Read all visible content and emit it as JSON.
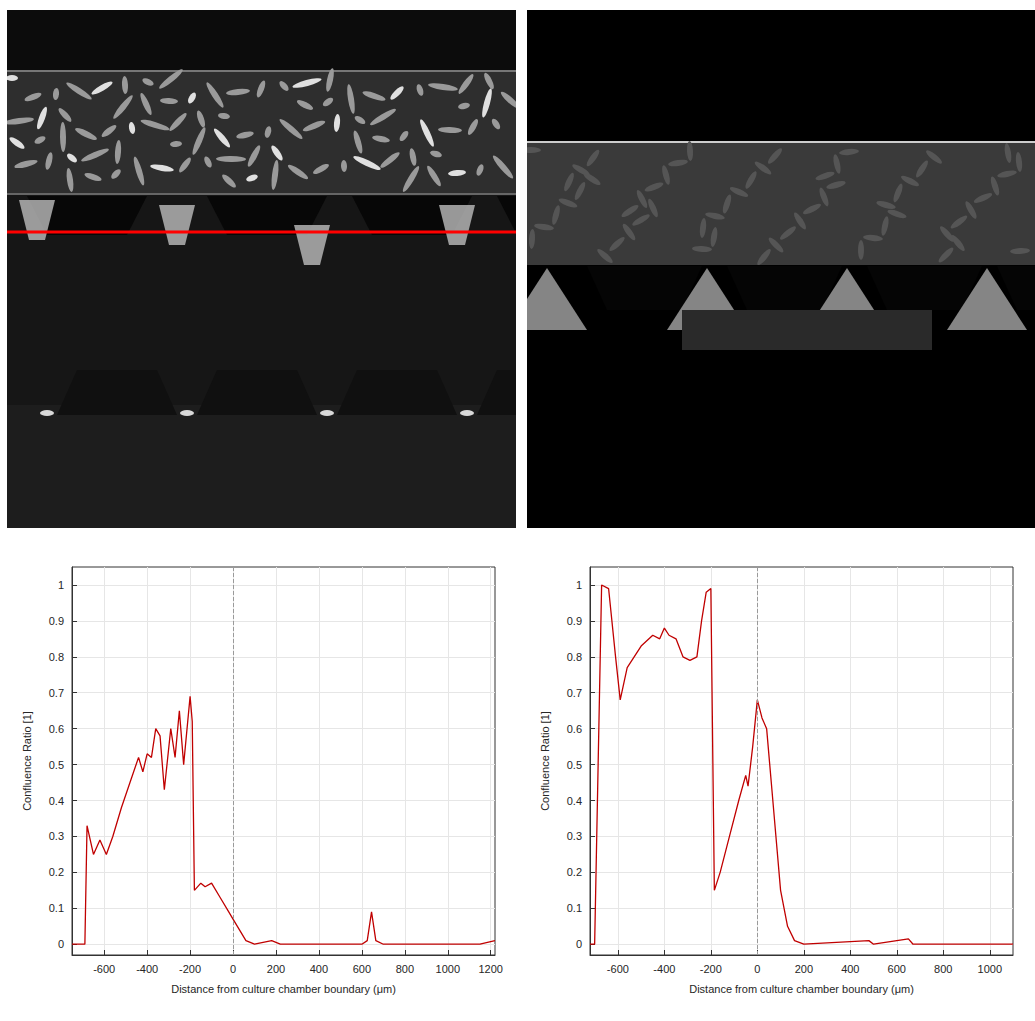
{
  "chart_data": [
    {
      "type": "line",
      "x_label": "Distance from culture chamber boundary (μm)",
      "y_label": "Confluence Ratio [1]",
      "x": [
        -750,
        -690,
        -680,
        -650,
        -620,
        -590,
        -560,
        -520,
        -480,
        -440,
        -420,
        -400,
        -380,
        -360,
        -340,
        -320,
        -290,
        -270,
        -250,
        -230,
        -200,
        -190,
        -180,
        -150,
        -130,
        -100,
        -60,
        -20,
        0,
        30,
        60,
        100,
        180,
        220,
        600,
        625,
        645,
        665,
        700,
        1150,
        1220
      ],
      "values": [
        0,
        0,
        0.33,
        0.25,
        0.29,
        0.25,
        0.3,
        0.38,
        0.45,
        0.52,
        0.48,
        0.53,
        0.52,
        0.6,
        0.58,
        0.43,
        0.6,
        0.52,
        0.65,
        0.5,
        0.69,
        0.62,
        0.15,
        0.17,
        0.16,
        0.17,
        0.13,
        0.09,
        0.07,
        0.04,
        0.01,
        0,
        0.01,
        0,
        0,
        0.01,
        0.09,
        0.01,
        0,
        0,
        0.01
      ],
      "color": "#c00000",
      "xlim": [
        -750,
        1220
      ],
      "xticks": [
        -600,
        -400,
        -200,
        0,
        200,
        400,
        600,
        800,
        1000,
        1200
      ],
      "ylim": [
        -0.03,
        1.05
      ],
      "yticks": [
        0,
        0.1,
        0.2,
        0.3,
        0.4,
        0.5,
        0.6,
        0.7,
        0.8,
        0.9,
        1
      ],
      "vline": 0,
      "grid": true
    },
    {
      "type": "line",
      "x_label": "Distance from culture chamber boundary (μm)",
      "y_label": "Confluence Ratio [1]",
      "x": [
        -720,
        -700,
        -670,
        -640,
        -610,
        -590,
        -560,
        -530,
        -500,
        -450,
        -420,
        -400,
        -380,
        -350,
        -320,
        -290,
        -260,
        -240,
        -220,
        -200,
        -185,
        -160,
        -120,
        -80,
        -50,
        -40,
        -20,
        0,
        20,
        40,
        60,
        80,
        100,
        130,
        160,
        200,
        480,
        500,
        650,
        670,
        1100
      ],
      "values": [
        0,
        0,
        1,
        0.99,
        0.8,
        0.68,
        0.77,
        0.8,
        0.83,
        0.86,
        0.85,
        0.88,
        0.86,
        0.85,
        0.8,
        0.79,
        0.8,
        0.9,
        0.98,
        0.99,
        0.15,
        0.2,
        0.3,
        0.4,
        0.47,
        0.44,
        0.55,
        0.68,
        0.63,
        0.6,
        0.45,
        0.3,
        0.15,
        0.05,
        0.01,
        0,
        0.01,
        0,
        0.015,
        0,
        0
      ],
      "color": "#c00000",
      "xlim": [
        -720,
        1100
      ],
      "xticks": [
        -600,
        -400,
        -200,
        0,
        200,
        400,
        600,
        800,
        1000
      ],
      "ylim": [
        -0.03,
        1.05
      ],
      "yticks": [
        0,
        0.1,
        0.2,
        0.3,
        0.4,
        0.5,
        0.6,
        0.7,
        0.8,
        0.9,
        1
      ],
      "vline": 0,
      "grid": true
    }
  ]
}
